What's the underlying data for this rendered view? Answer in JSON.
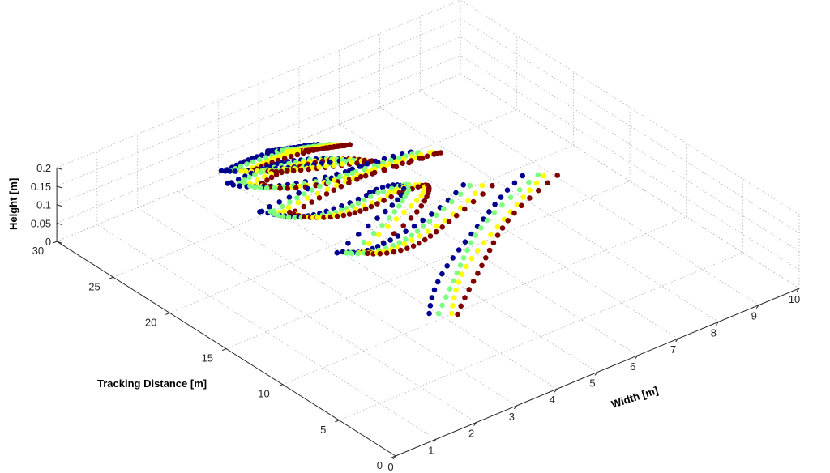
{
  "chart_data": {
    "type": "scatter3d",
    "xlabel": "Width [m]",
    "ylabel": "Tracking Distance [m]",
    "zlabel": "Height [m]",
    "xlim": [
      0,
      10
    ],
    "ylim": [
      0,
      30
    ],
    "zlim": [
      0,
      0.2
    ],
    "grid": true,
    "x_ticks": [
      0,
      1,
      2,
      3,
      4,
      5,
      6,
      7,
      8,
      9,
      10
    ],
    "y_ticks": [
      0,
      5,
      10,
      15,
      20,
      25,
      30
    ],
    "z_ticks": [
      0,
      0.05,
      0.1,
      0.15,
      0.2
    ],
    "x_tick_labels": [
      "0",
      "1",
      "2",
      "3",
      "4",
      "5",
      "6",
      "7",
      "8",
      "9",
      "10"
    ],
    "y_tick_labels": [
      "0",
      "5",
      "10",
      "15",
      "20",
      "25",
      "30"
    ],
    "z_tick_labels": [
      "0",
      "0.05",
      "0.1",
      "0.15",
      "0.2"
    ],
    "series": [
      {
        "color": "#00008f",
        "offset": [
          -0.22,
          0.55
        ],
        "segments": [
          [
            [
              4.1,
              10.3
            ],
            [
              6.1,
              15.8
            ],
            [
              8.8,
              18.6
            ]
          ],
          [
            [
              7.6,
              20.0
            ],
            [
              4.7,
              16.3
            ],
            [
              4.2,
              18.6
            ]
          ],
          [
            [
              4.2,
              18.6
            ],
            [
              7.9,
              22.5
            ],
            [
              6.1,
              22.6
            ]
          ],
          [
            [
              6.1,
              22.6
            ],
            [
              4.2,
              21.8
            ],
            [
              4.0,
              24.8
            ]
          ],
          [
            [
              4.0,
              24.8
            ],
            [
              6.2,
              25.7
            ],
            [
              7.6,
              24.6
            ]
          ],
          [
            [
              7.6,
              24.6
            ],
            [
              4.4,
              25.5
            ],
            [
              4.2,
              28.3
            ]
          ],
          [
            [
              4.2,
              28.3
            ],
            [
              5.7,
              29.0
            ],
            [
              6.4,
              26.3
            ]
          ],
          [
            [
              6.4,
              26.3
            ],
            [
              4.9,
              28.0
            ],
            [
              4.4,
              29.6
            ]
          ],
          [
            [
              4.4,
              29.6
            ],
            [
              5.6,
              29.8
            ],
            [
              6.4,
              28.5
            ]
          ],
          [
            [
              6.4,
              28.5
            ],
            [
              5.7,
              29.4
            ],
            [
              5.5,
              29.7
            ]
          ]
        ]
      },
      {
        "color": "#7fff7f",
        "offset": [
          -0.08,
          0.2
        ],
        "segments": [
          [
            [
              4.1,
              10.3
            ],
            [
              6.1,
              15.8
            ],
            [
              8.8,
              18.6
            ]
          ],
          [
            [
              7.6,
              20.0
            ],
            [
              4.7,
              16.3
            ],
            [
              4.2,
              18.6
            ]
          ],
          [
            [
              4.2,
              18.6
            ],
            [
              7.9,
              22.5
            ],
            [
              6.1,
              22.6
            ]
          ],
          [
            [
              6.1,
              22.6
            ],
            [
              4.2,
              21.8
            ],
            [
              4.0,
              24.8
            ]
          ],
          [
            [
              4.0,
              24.8
            ],
            [
              6.2,
              25.7
            ],
            [
              7.6,
              24.6
            ]
          ],
          [
            [
              7.6,
              24.6
            ],
            [
              4.4,
              25.5
            ],
            [
              4.2,
              28.3
            ]
          ],
          [
            [
              4.2,
              28.3
            ],
            [
              5.7,
              29.0
            ],
            [
              6.4,
              26.3
            ]
          ],
          [
            [
              6.4,
              26.3
            ],
            [
              4.9,
              28.0
            ],
            [
              4.4,
              29.6
            ]
          ],
          [
            [
              4.4,
              29.6
            ],
            [
              5.6,
              29.8
            ],
            [
              6.4,
              28.5
            ]
          ],
          [
            [
              6.4,
              28.5
            ],
            [
              5.7,
              29.4
            ],
            [
              5.5,
              29.7
            ]
          ]
        ]
      },
      {
        "color": "#ffff00",
        "offset": [
          0.08,
          -0.2
        ],
        "segments": [
          [
            [
              4.1,
              10.3
            ],
            [
              6.1,
              15.8
            ],
            [
              8.8,
              18.6
            ]
          ],
          [
            [
              7.6,
              20.0
            ],
            [
              4.7,
              16.3
            ],
            [
              4.2,
              18.6
            ]
          ],
          [
            [
              4.2,
              18.6
            ],
            [
              7.9,
              22.5
            ],
            [
              6.1,
              22.6
            ]
          ],
          [
            [
              6.1,
              22.6
            ],
            [
              4.2,
              21.8
            ],
            [
              4.0,
              24.8
            ]
          ],
          [
            [
              4.0,
              24.8
            ],
            [
              6.2,
              25.7
            ],
            [
              7.6,
              24.6
            ]
          ],
          [
            [
              7.6,
              24.6
            ],
            [
              4.4,
              25.5
            ],
            [
              4.2,
              28.3
            ]
          ],
          [
            [
              4.2,
              28.3
            ],
            [
              5.7,
              29.0
            ],
            [
              6.4,
              26.3
            ]
          ],
          [
            [
              6.4,
              26.3
            ],
            [
              4.9,
              28.0
            ],
            [
              4.4,
              29.6
            ]
          ],
          [
            [
              4.4,
              29.6
            ],
            [
              5.6,
              29.8
            ],
            [
              6.4,
              28.5
            ]
          ],
          [
            [
              6.4,
              28.5
            ],
            [
              5.7,
              29.4
            ],
            [
              5.5,
              29.7
            ]
          ]
        ]
      },
      {
        "color": "#800000",
        "offset": [
          0.22,
          -0.55
        ],
        "segments": [
          [
            [
              4.1,
              10.3
            ],
            [
              6.1,
              15.8
            ],
            [
              8.8,
              18.6
            ]
          ],
          [
            [
              7.6,
              20.0
            ],
            [
              4.7,
              16.3
            ],
            [
              4.2,
              18.6
            ]
          ],
          [
            [
              4.2,
              18.6
            ],
            [
              7.9,
              22.5
            ],
            [
              6.1,
              22.6
            ]
          ],
          [
            [
              6.1,
              22.6
            ],
            [
              4.2,
              21.8
            ],
            [
              4.0,
              24.8
            ]
          ],
          [
            [
              4.0,
              24.8
            ],
            [
              6.2,
              25.7
            ],
            [
              7.6,
              24.6
            ]
          ],
          [
            [
              7.6,
              24.6
            ],
            [
              4.4,
              25.5
            ],
            [
              4.2,
              28.3
            ]
          ],
          [
            [
              4.2,
              28.3
            ],
            [
              5.7,
              29.0
            ],
            [
              6.4,
              26.3
            ]
          ],
          [
            [
              6.4,
              26.3
            ],
            [
              4.9,
              28.0
            ],
            [
              4.4,
              29.6
            ]
          ],
          [
            [
              4.4,
              29.6
            ],
            [
              5.6,
              29.8
            ],
            [
              6.4,
              28.5
            ]
          ],
          [
            [
              6.4,
              28.5
            ],
            [
              5.7,
              29.4
            ],
            [
              5.5,
              29.7
            ]
          ]
        ]
      }
    ]
  }
}
